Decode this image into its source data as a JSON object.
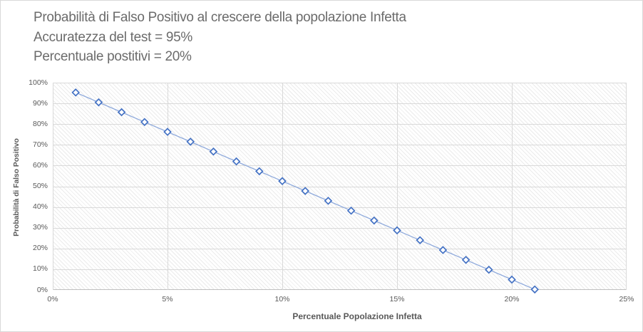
{
  "chart_data": {
    "type": "line",
    "title": "Probabilità di Falso Positivo al crescere della popolazione Infetta",
    "subtitle1": "Accuratezza del test = 95%",
    "subtitle2": "Percentuale postitivi = 20%",
    "xlabel": "Percentuale Popolazione Infetta",
    "ylabel": "Probabilità di Falso Positivo",
    "xlim": [
      0,
      25
    ],
    "ylim": [
      0,
      100
    ],
    "grid": true,
    "legend_position": "none",
    "x_tick_values": [
      0,
      5,
      10,
      15,
      20,
      25
    ],
    "x_tick_labels": [
      "0%",
      "5%",
      "10%",
      "15%",
      "20%",
      "25%"
    ],
    "y_tick_values": [
      0,
      10,
      20,
      30,
      40,
      50,
      60,
      70,
      80,
      90,
      100
    ],
    "y_tick_labels": [
      "0%",
      "10%",
      "20%",
      "30%",
      "40%",
      "50%",
      "60%",
      "70%",
      "80%",
      "90%",
      "100%"
    ],
    "series": [
      {
        "name": "Probabilità di Falso Positivo",
        "marker": "open-diamond",
        "x": [
          1,
          2,
          3,
          4,
          5,
          6,
          7,
          8,
          9,
          10,
          11,
          12,
          13,
          14,
          15,
          16,
          17,
          18,
          19,
          20,
          21
        ],
        "y": [
          95.25,
          90.5,
          85.75,
          81,
          76.25,
          71.5,
          66.75,
          62,
          57.25,
          52.5,
          47.75,
          43,
          38.25,
          33.5,
          28.75,
          24,
          19.25,
          14.5,
          9.75,
          5,
          0.25
        ]
      }
    ],
    "colors": {
      "marker": "#4472c4",
      "line": "#8faadc",
      "gridline": "#d9d9d9",
      "axis_line": "#bfbfbf",
      "tick_text": "#595959",
      "title_text": "#6b6b6b",
      "plot_hatch": "#ebebeb",
      "background": "#ffffff"
    }
  }
}
